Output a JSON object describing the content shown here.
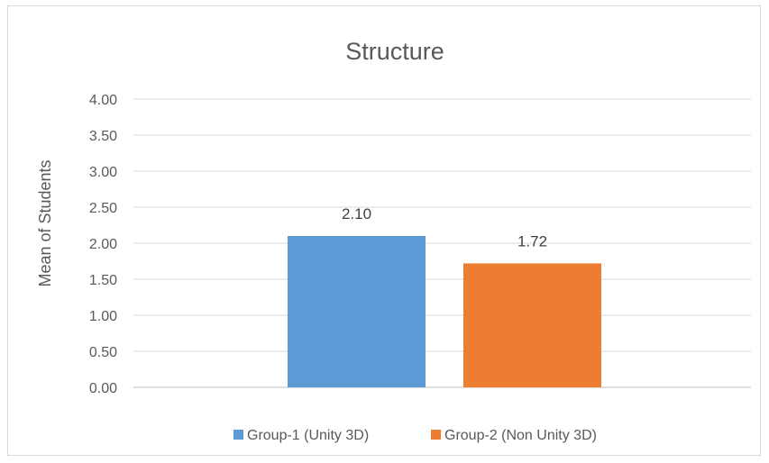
{
  "chart_data": {
    "type": "bar",
    "title": "Structure",
    "ylabel": "Mean of Students",
    "xlabel": "",
    "ylim": [
      0,
      4
    ],
    "ytick_step": 0.5,
    "ytick_decimals": 2,
    "grid": true,
    "legend_position": "bottom",
    "series": [
      {
        "name": "Group-1 (Unity 3D)",
        "value": 2.1,
        "label": "2.10",
        "color": "#5b9bd5"
      },
      {
        "name": "Group-2 (Non Unity 3D)",
        "value": 1.72,
        "label": "1.72",
        "color": "#ed7d31"
      }
    ]
  }
}
